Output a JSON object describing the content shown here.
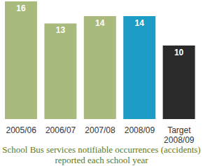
{
  "chart_data": {
    "type": "bar",
    "title": "School Bus services notifiable occurrences (accidents) reported each school year",
    "categories": [
      "2005/06",
      "2006/07",
      "2007/08",
      "2008/09",
      "Target 2008/09"
    ],
    "values": [
      16,
      13,
      14,
      14,
      10
    ],
    "colors": [
      "#a9ba7d",
      "#a9ba7d",
      "#a9ba7d",
      "#1d9cc6",
      "#2a2a2a"
    ],
    "ylim": [
      0,
      16
    ],
    "data_labels": true,
    "tick_labels": "x",
    "grid": false
  }
}
